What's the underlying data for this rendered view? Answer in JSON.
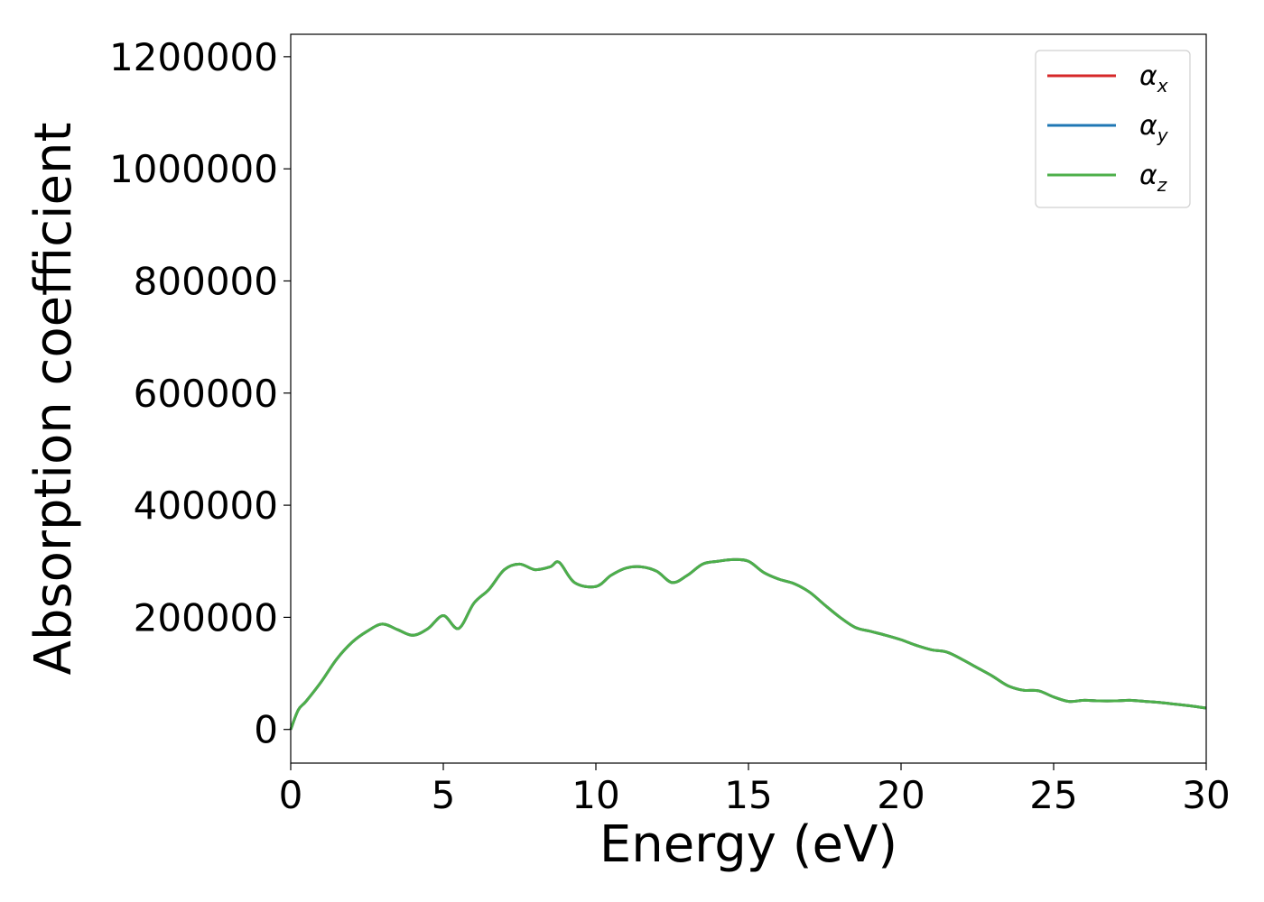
{
  "chart_data": {
    "type": "line",
    "xlabel": "Energy (eV)",
    "ylabel": "Absorption coefficient",
    "xlim": [
      0,
      30
    ],
    "ylim": [
      -60000,
      1240000
    ],
    "xticks": [
      "0",
      "5",
      "10",
      "15",
      "20",
      "25",
      "30"
    ],
    "yticks": [
      "0",
      "200000",
      "400000",
      "600000",
      "800000",
      "1000000",
      "1200000"
    ],
    "grid": false,
    "legend_position": "top-right",
    "x": [
      0,
      0.25,
      0.5,
      1,
      1.5,
      2,
      2.5,
      3,
      3.5,
      4,
      4.5,
      5,
      5.5,
      6,
      6.5,
      7,
      7.5,
      8,
      8.5,
      8.8,
      9.3,
      10,
      10.5,
      11,
      11.5,
      12,
      12.5,
      13,
      13.5,
      14,
      14.5,
      15,
      15.5,
      16,
      16.5,
      17,
      17.5,
      18,
      18.5,
      19,
      19.5,
      20,
      20.5,
      21,
      21.5,
      22,
      22.5,
      23,
      23.5,
      24,
      24.5,
      25,
      25.5,
      26,
      26.5,
      27,
      27.5,
      28,
      28.5,
      29,
      29.5,
      30
    ],
    "series": [
      {
        "name": "α",
        "subscript": "x",
        "color": "#d62728",
        "values": [
          0,
          35000,
          50000,
          85000,
          125000,
          155000,
          175000,
          188000,
          178000,
          168000,
          180000,
          203000,
          180000,
          225000,
          250000,
          285000,
          295000,
          285000,
          290000,
          298000,
          262000,
          255000,
          275000,
          288000,
          290000,
          282000,
          262000,
          275000,
          295000,
          300000,
          303000,
          300000,
          280000,
          268000,
          260000,
          245000,
          222000,
          200000,
          182000,
          175000,
          168000,
          160000,
          150000,
          142000,
          138000,
          125000,
          110000,
          95000,
          78000,
          70000,
          69000,
          58000,
          50000,
          52000,
          51000,
          51000,
          52000,
          50000,
          48000,
          45000,
          42000,
          38000
        ]
      },
      {
        "name": "α",
        "subscript": "y",
        "color": "#1f77b4",
        "values": [
          0,
          35000,
          50000,
          85000,
          125000,
          155000,
          175000,
          188000,
          178000,
          168000,
          180000,
          203000,
          180000,
          225000,
          250000,
          285000,
          295000,
          285000,
          290000,
          298000,
          262000,
          255000,
          275000,
          288000,
          290000,
          282000,
          262000,
          275000,
          295000,
          300000,
          303000,
          300000,
          280000,
          268000,
          260000,
          245000,
          222000,
          200000,
          182000,
          175000,
          168000,
          160000,
          150000,
          142000,
          138000,
          125000,
          110000,
          95000,
          78000,
          70000,
          69000,
          58000,
          50000,
          52000,
          51000,
          51000,
          52000,
          50000,
          48000,
          45000,
          42000,
          38000
        ]
      },
      {
        "name": "α",
        "subscript": "z",
        "color": "#4daf4a",
        "values": [
          0,
          35000,
          50000,
          85000,
          125000,
          155000,
          175000,
          188000,
          178000,
          168000,
          180000,
          203000,
          180000,
          225000,
          250000,
          285000,
          295000,
          285000,
          290000,
          298000,
          262000,
          255000,
          275000,
          288000,
          290000,
          282000,
          262000,
          275000,
          295000,
          300000,
          303000,
          300000,
          280000,
          268000,
          260000,
          245000,
          222000,
          200000,
          182000,
          175000,
          168000,
          160000,
          150000,
          142000,
          138000,
          125000,
          110000,
          95000,
          78000,
          70000,
          69000,
          58000,
          50000,
          52000,
          51000,
          51000,
          52000,
          50000,
          48000,
          45000,
          42000,
          38000
        ]
      }
    ]
  }
}
